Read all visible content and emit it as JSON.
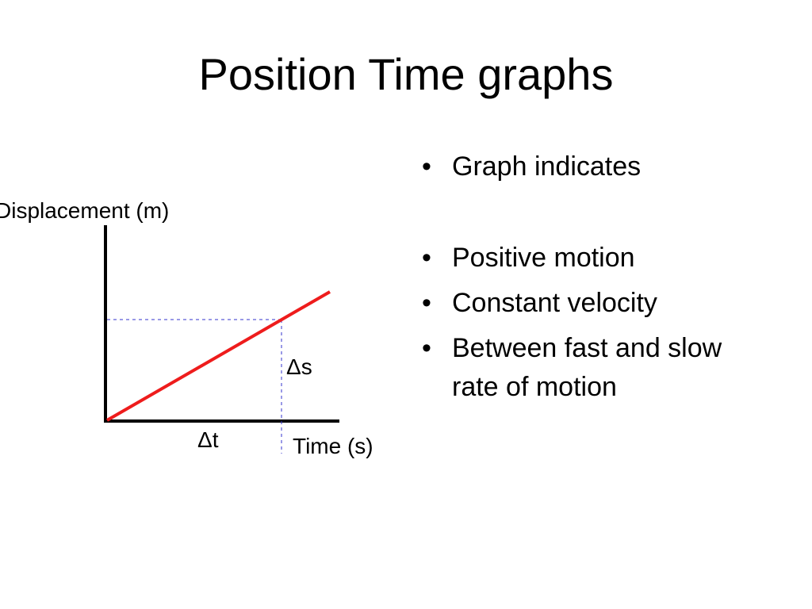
{
  "title": "Position Time graphs",
  "diagram": {
    "y_axis_label": "Displacement (m)",
    "x_axis_label": "Time (s)",
    "delta_s": "Δs",
    "delta_t": "Δt"
  },
  "bullets": [
    "Graph indicates",
    "Positive motion",
    "Constant velocity",
    "Between fast and slow rate of motion"
  ]
}
